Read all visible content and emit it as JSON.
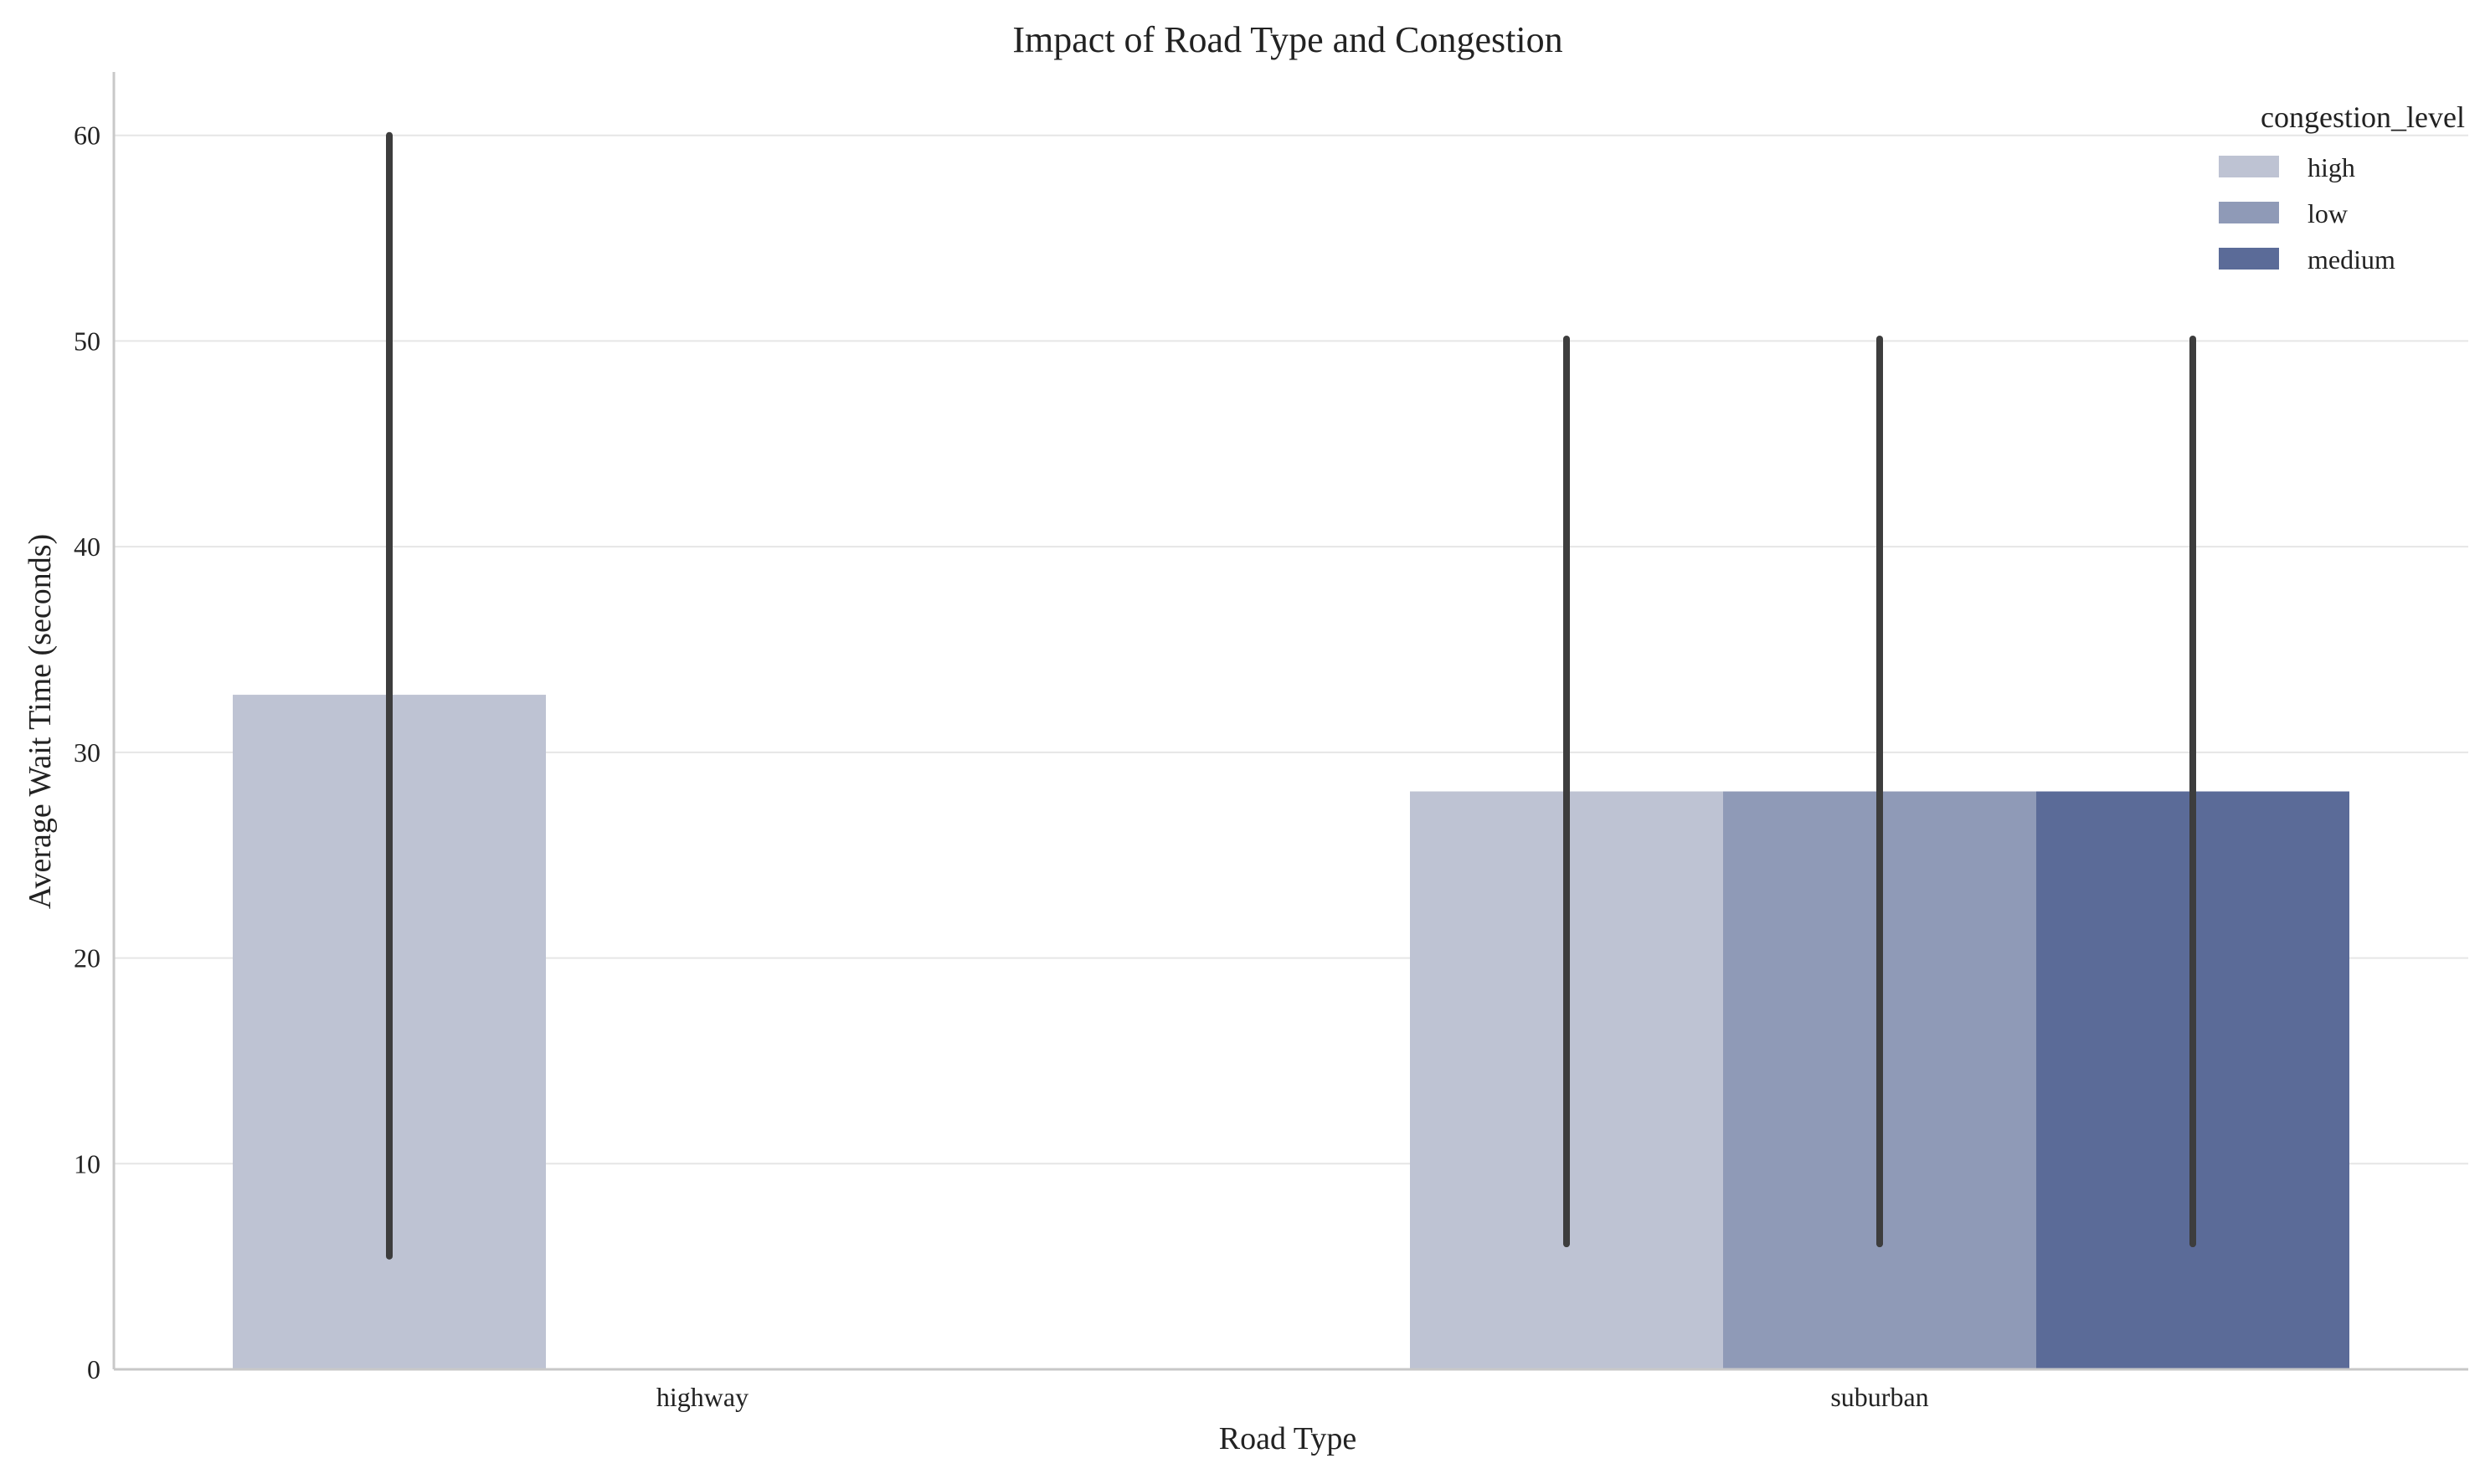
{
  "chart_data": {
    "type": "bar",
    "title": "Impact of Road Type and Congestion",
    "xlabel": "Road Type",
    "ylabel": "Average Wait Time (seconds)",
    "categories": [
      "highway",
      "suburban"
    ],
    "ylim": [
      0,
      63
    ],
    "yticks": [
      0,
      10,
      20,
      30,
      40,
      50,
      60
    ],
    "grid": "y",
    "legend": {
      "title": "congestion_level",
      "placement": "top-right"
    },
    "series": [
      {
        "name": "high",
        "color": "#bec3d3",
        "values": [
          32.8,
          28.1
        ],
        "error_low": [
          5.5,
          6.1
        ],
        "error_high": [
          60.0,
          50.1
        ]
      },
      {
        "name": "low",
        "color": "#8f9ab7",
        "values": [
          null,
          28.1
        ],
        "error_low": [
          null,
          6.1
        ],
        "error_high": [
          null,
          50.1
        ]
      },
      {
        "name": "medium",
        "color": "#5b6b98",
        "values": [
          null,
          28.1
        ],
        "error_low": [
          null,
          6.1
        ],
        "error_high": [
          null,
          50.1
        ]
      }
    ]
  }
}
